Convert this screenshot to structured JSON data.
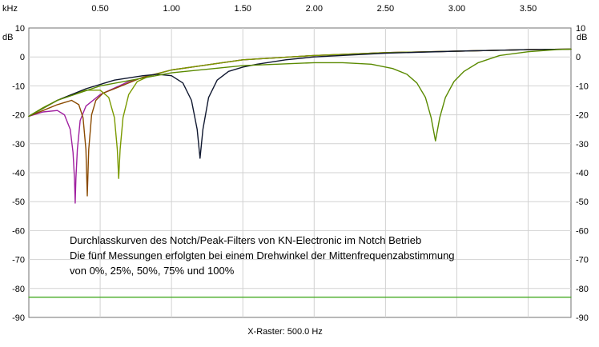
{
  "chart_data": {
    "type": "line",
    "x_unit": "kHz",
    "y_unit": "dB",
    "xlim": [
      0.0,
      3.8
    ],
    "ylim": [
      -90,
      10
    ],
    "x_ticks": [
      0.5,
      1.0,
      1.5,
      2.0,
      2.5,
      3.0,
      3.5
    ],
    "x_tick_labels": [
      "0.50",
      "1.00",
      "1.50",
      "2.00",
      "2.50",
      "3.00",
      "3.50"
    ],
    "y_ticks": [
      10,
      0,
      -10,
      -20,
      -30,
      -40,
      -50,
      -60,
      -70,
      -80,
      -90
    ],
    "y_tick_labels": [
      "10",
      "0",
      "-10",
      "-20",
      "-30",
      "-40",
      "-50",
      "-60",
      "-70",
      "-80",
      "-90"
    ],
    "grid": true,
    "footer": "X-Raster: 500.0 Hz",
    "annotation_lines": [
      "Durchlasskurven des Notch/Peak-Filters von KN-Electronic im Notch Betrieb",
      "Die fünf Messungen erfolgten bei einem Drehwinkel der Mittenfrequenzabstimmung",
      "von 0%, 25%, 50%, 75% und 100%"
    ],
    "series": [
      {
        "color": "#a020a0",
        "notch_center": 0.325,
        "notch_depth": -50.5,
        "x": [
          0.0,
          0.1,
          0.2,
          0.25,
          0.29,
          0.31,
          0.32,
          0.325,
          0.33,
          0.34,
          0.36,
          0.4,
          0.5,
          0.7,
          1.0,
          1.5,
          2.0,
          2.5,
          3.0,
          3.5,
          3.8
        ],
        "y": [
          -20.5,
          -19.0,
          -18.5,
          -20.0,
          -25.0,
          -33.0,
          -42.0,
          -50.5,
          -42.0,
          -32.0,
          -22.0,
          -17.0,
          -13.0,
          -8.5,
          -4.5,
          -1.0,
          0.5,
          1.5,
          2.0,
          2.5,
          2.7
        ]
      },
      {
        "color": "#8a4a00",
        "notch_center": 0.41,
        "notch_depth": -48.0,
        "x": [
          0.0,
          0.1,
          0.2,
          0.3,
          0.35,
          0.38,
          0.4,
          0.41,
          0.42,
          0.44,
          0.47,
          0.52,
          0.6,
          0.8,
          1.0,
          1.5,
          2.0,
          2.5,
          3.0,
          3.5,
          3.8
        ],
        "y": [
          -20.5,
          -18.5,
          -16.5,
          -15.0,
          -16.5,
          -21.0,
          -32.0,
          -48.0,
          -32.0,
          -20.0,
          -15.0,
          -12.5,
          -11.0,
          -7.0,
          -4.5,
          -1.0,
          0.5,
          1.5,
          2.0,
          2.5,
          2.7
        ]
      },
      {
        "color": "#7a9a00",
        "notch_center": 0.63,
        "notch_depth": -42.0,
        "x": [
          0.0,
          0.1,
          0.2,
          0.3,
          0.4,
          0.5,
          0.56,
          0.6,
          0.62,
          0.63,
          0.64,
          0.66,
          0.7,
          0.76,
          0.85,
          1.0,
          1.5,
          2.0,
          2.5,
          3.0,
          3.5,
          3.8
        ],
        "y": [
          -20.5,
          -17.5,
          -15.0,
          -13.0,
          -11.5,
          -11.5,
          -14.0,
          -21.0,
          -32.0,
          -42.0,
          -32.0,
          -21.0,
          -13.0,
          -8.5,
          -6.5,
          -4.5,
          -1.0,
          0.5,
          1.5,
          2.0,
          2.5,
          2.7
        ]
      },
      {
        "color": "#101830",
        "notch_center": 1.2,
        "notch_depth": -35.0,
        "x": [
          0.0,
          0.2,
          0.4,
          0.6,
          0.8,
          0.9,
          1.0,
          1.08,
          1.14,
          1.18,
          1.2,
          1.22,
          1.26,
          1.32,
          1.4,
          1.5,
          1.6,
          1.8,
          2.0,
          2.5,
          3.0,
          3.5,
          3.8
        ],
        "y": [
          -20.5,
          -15.0,
          -11.0,
          -8.0,
          -6.5,
          -6.0,
          -6.5,
          -9.0,
          -15.0,
          -25.0,
          -35.0,
          -25.0,
          -14.0,
          -8.0,
          -5.0,
          -3.5,
          -2.5,
          -1.0,
          0.0,
          1.3,
          2.0,
          2.5,
          2.7
        ]
      },
      {
        "color": "#5a8a00",
        "notch_center": 2.85,
        "notch_depth": -29.0,
        "x": [
          0.0,
          0.2,
          0.5,
          1.0,
          1.5,
          2.0,
          2.2,
          2.4,
          2.55,
          2.65,
          2.72,
          2.78,
          2.82,
          2.85,
          2.88,
          2.92,
          2.98,
          3.05,
          3.15,
          3.3,
          3.5,
          3.7,
          3.8
        ],
        "y": [
          -20.5,
          -15.0,
          -10.0,
          -5.5,
          -3.0,
          -2.0,
          -2.0,
          -2.5,
          -4.0,
          -6.0,
          -9.0,
          -14.0,
          -21.0,
          -29.0,
          -21.0,
          -14.0,
          -8.5,
          -5.0,
          -2.0,
          0.5,
          1.8,
          2.5,
          2.7
        ]
      },
      {
        "color": "#44aa22",
        "x": [
          0.0,
          3.8
        ],
        "y": [
          -83.0,
          -83.0
        ]
      }
    ]
  }
}
